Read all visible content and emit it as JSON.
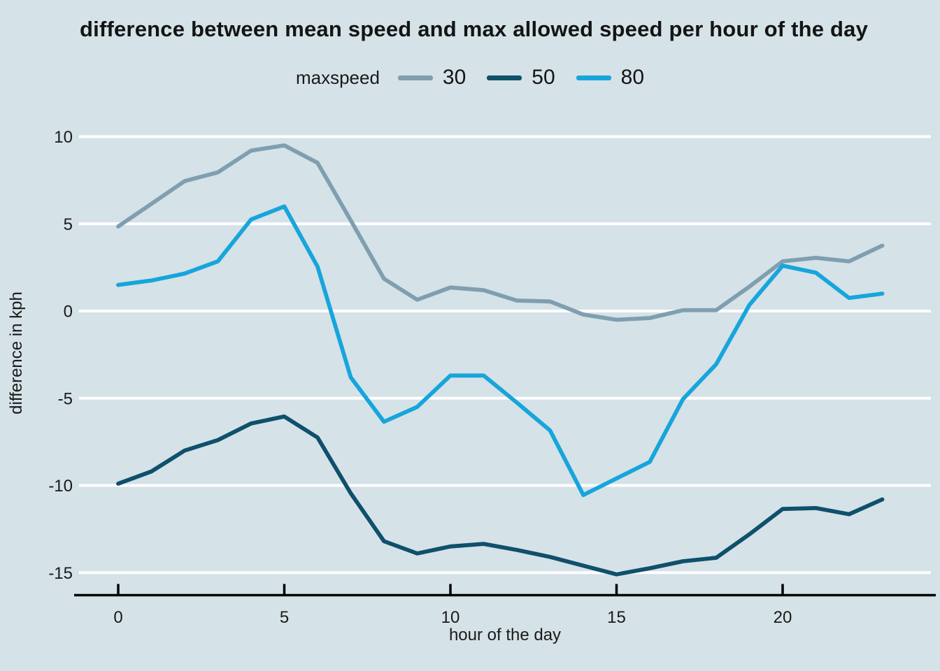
{
  "title": "difference between mean speed and max allowed speed per hour of the day",
  "legend": {
    "title": "maxspeed",
    "entries": [
      "30",
      "50",
      "80"
    ]
  },
  "axes": {
    "x_label": "hour of the day",
    "y_label": "difference in kph",
    "x_ticks": [
      0,
      5,
      10,
      15,
      20
    ],
    "y_ticks": [
      10,
      5,
      0,
      -5,
      -10,
      -15
    ]
  },
  "colors": {
    "background": "#d5e2e8",
    "gridline": "#ffffff",
    "axis_line": "#000000",
    "text": "#1a1a1a",
    "series_30": "#7f9fb0",
    "series_50": "#0f506b",
    "series_80": "#17a5db"
  },
  "chart_data": {
    "type": "line",
    "title": "difference between mean speed and max allowed speed per hour of the day",
    "xlabel": "hour of the day",
    "ylabel": "difference in kph",
    "legend_title": "maxspeed",
    "legend_position": "top-center",
    "grid": "horizontal-white",
    "background": "#d5e2e8",
    "xlim": [
      -1.15,
      24.5
    ],
    "ylim": [
      -16.3,
      11.2
    ],
    "x_ticks": [
      0,
      5,
      10,
      15,
      20
    ],
    "y_ticks": [
      10,
      5,
      0,
      -5,
      -10,
      -15
    ],
    "x": [
      0,
      1,
      2,
      3,
      4,
      5,
      6,
      7,
      8,
      9,
      10,
      11,
      12,
      13,
      14,
      15,
      16,
      17,
      18,
      19,
      20,
      21,
      22,
      23
    ],
    "series": [
      {
        "name": "30",
        "color": "#7f9fb0",
        "values": [
          4.85,
          6.15,
          7.45,
          7.95,
          9.2,
          9.5,
          8.5,
          5.2,
          1.85,
          0.65,
          1.35,
          1.2,
          0.6,
          0.55,
          -0.2,
          -0.5,
          -0.4,
          0.05,
          0.05,
          1.4,
          2.85,
          3.05,
          2.85,
          3.75
        ]
      },
      {
        "name": "50",
        "color": "#0f506b",
        "values": [
          -9.9,
          -9.2,
          -8.0,
          -7.4,
          -6.45,
          -6.05,
          -7.25,
          -10.45,
          -13.2,
          -13.9,
          -13.5,
          -13.35,
          -13.7,
          -14.1,
          -14.6,
          -15.1,
          -14.75,
          -14.35,
          -14.15,
          -12.8,
          -11.35,
          -11.3,
          -11.65,
          -10.8
        ]
      },
      {
        "name": "80",
        "color": "#17a5db",
        "values": [
          1.5,
          1.75,
          2.15,
          2.85,
          5.25,
          6.0,
          2.55,
          -3.8,
          -6.35,
          -5.5,
          -3.7,
          -3.7,
          -5.25,
          -6.85,
          -10.55,
          -9.6,
          -8.65,
          -5.05,
          -3.05,
          0.35,
          2.6,
          2.2,
          0.75,
          1.0
        ]
      }
    ]
  }
}
